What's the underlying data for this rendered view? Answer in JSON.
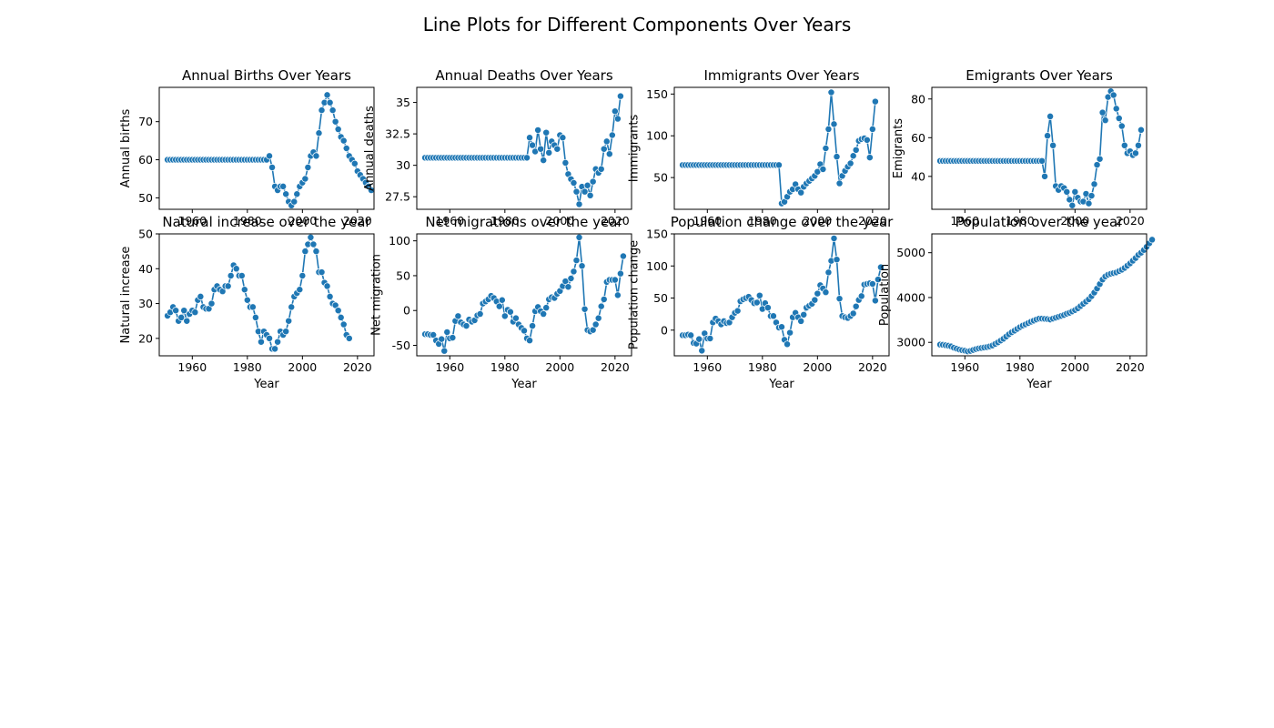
{
  "figure": {
    "suptitle": "Line Plots for Different Components Over Years",
    "line_color": "#1f77b4",
    "marker_edge_color": "#ffffff"
  },
  "chart_data": [
    {
      "type": "line",
      "title": "Annual Births Over Years",
      "xlabel": "",
      "ylabel": "Annual births",
      "xlim": [
        1948,
        2026
      ],
      "ylim": [
        47,
        79
      ],
      "xticks": [
        1960,
        1980,
        2000,
        2020
      ],
      "yticks": [
        50,
        60,
        70
      ],
      "x_start": 1951,
      "y": [
        60,
        60,
        60,
        60,
        60,
        60,
        60,
        60,
        60,
        60,
        60,
        60,
        60,
        60,
        60,
        60,
        60,
        60,
        60,
        60,
        60,
        60,
        60,
        60,
        60,
        60,
        60,
        60,
        60,
        60,
        60,
        60,
        60,
        60,
        60,
        60,
        60,
        61,
        58,
        53,
        52,
        53,
        53,
        51,
        49,
        48,
        49,
        51,
        53,
        54,
        55,
        58,
        61,
        62,
        61,
        67,
        73,
        75,
        77,
        75,
        73,
        70,
        68,
        66,
        65,
        63,
        61,
        60,
        59,
        57,
        56,
        55,
        54,
        53,
        52
      ]
    },
    {
      "type": "line",
      "title": "Annual Deaths Over Years",
      "xlabel": "",
      "ylabel": "Annual deaths",
      "xlim": [
        1948,
        2026
      ],
      "ylim": [
        26.5,
        36.2
      ],
      "xticks": [
        1960,
        1980,
        2000,
        2020
      ],
      "yticks": [
        27.5,
        30.0,
        32.5,
        35.0
      ],
      "x_start": 1951,
      "y": [
        30.6,
        30.6,
        30.6,
        30.6,
        30.6,
        30.6,
        30.6,
        30.6,
        30.6,
        30.6,
        30.6,
        30.6,
        30.6,
        30.6,
        30.6,
        30.6,
        30.6,
        30.6,
        30.6,
        30.6,
        30.6,
        30.6,
        30.6,
        30.6,
        30.6,
        30.6,
        30.6,
        30.6,
        30.6,
        30.6,
        30.6,
        30.6,
        30.6,
        30.6,
        30.6,
        30.6,
        30.6,
        30.6,
        32.2,
        31.6,
        31.1,
        32.8,
        31.3,
        30.4,
        32.6,
        31.0,
        31.9,
        31.6,
        31.3,
        32.4,
        32.2,
        30.2,
        29.3,
        28.9,
        28.6,
        27.9,
        26.9,
        28.3,
        27.9,
        28.4,
        27.6,
        28.7,
        29.7,
        29.4,
        29.7,
        31.3,
        31.9,
        30.9,
        32.4,
        34.3,
        33.7,
        35.5
      ]
    },
    {
      "type": "line",
      "title": "Immigrants Over Years",
      "xlabel": "",
      "ylabel": "Immigrants",
      "xlim": [
        1948,
        2026
      ],
      "ylim": [
        12,
        158
      ],
      "xticks": [
        1960,
        1980,
        2000,
        2020
      ],
      "yticks": [
        50,
        100,
        150
      ],
      "x_start": 1951,
      "y": [
        65,
        65,
        65,
        65,
        65,
        65,
        65,
        65,
        65,
        65,
        65,
        65,
        65,
        65,
        65,
        65,
        65,
        65,
        65,
        65,
        65,
        65,
        65,
        65,
        65,
        65,
        65,
        65,
        65,
        65,
        65,
        65,
        65,
        65,
        65,
        65,
        19,
        21,
        27,
        33,
        36,
        42,
        36,
        32,
        39,
        43,
        46,
        49,
        52,
        57,
        66,
        60,
        85,
        108,
        152,
        114,
        75,
        43,
        52,
        58,
        63,
        67,
        76,
        83,
        94,
        96,
        97,
        95,
        74,
        108,
        141
      ]
    },
    {
      "type": "line",
      "title": "Emigrants Over Years",
      "xlabel": "",
      "ylabel": "Emigrants",
      "xlim": [
        1948,
        2026
      ],
      "ylim": [
        23,
        86
      ],
      "xticks": [
        1960,
        1980,
        2000,
        2020
      ],
      "yticks": [
        40,
        60,
        80
      ],
      "x_start": 1951,
      "y": [
        48,
        48,
        48,
        48,
        48,
        48,
        48,
        48,
        48,
        48,
        48,
        48,
        48,
        48,
        48,
        48,
        48,
        48,
        48,
        48,
        48,
        48,
        48,
        48,
        48,
        48,
        48,
        48,
        48,
        48,
        48,
        48,
        48,
        48,
        48,
        48,
        48,
        48,
        40,
        61,
        71,
        56,
        35,
        33,
        35,
        34,
        32,
        28,
        25,
        32,
        29,
        27,
        27,
        31,
        26,
        30,
        36,
        46,
        49,
        73,
        69,
        81,
        84,
        82,
        75,
        70,
        66,
        56,
        52,
        53,
        51,
        52,
        56,
        64
      ]
    },
    {
      "type": "line",
      "title": "Natural increase over the year",
      "xlabel": "Year",
      "ylabel": "Natural increase",
      "xlim": [
        1948,
        2026
      ],
      "ylim": [
        15,
        50
      ],
      "xticks": [
        1960,
        1980,
        2000,
        2020
      ],
      "yticks": [
        20,
        30,
        40,
        50
      ],
      "x_start": 1951,
      "y": [
        26.5,
        27.5,
        29,
        28,
        25,
        26,
        28,
        25,
        27,
        28,
        27.5,
        31,
        32,
        29,
        28.5,
        28.5,
        30,
        34,
        35,
        34,
        33.5,
        35,
        35,
        38,
        41,
        40,
        38,
        38,
        34,
        31,
        29,
        29,
        26,
        22,
        19,
        22,
        21,
        20,
        17,
        17,
        19,
        22,
        21,
        22,
        25,
        29,
        32,
        33,
        34,
        38,
        45,
        47,
        49,
        47,
        45,
        39,
        39,
        36,
        35,
        32,
        30,
        29.5,
        28,
        26,
        24,
        21,
        20
      ]
    },
    {
      "type": "line",
      "title": "Net migrations over the year",
      "xlabel": "Year",
      "ylabel": "Net migration",
      "xlim": [
        1948,
        2026
      ],
      "ylim": [
        -65,
        110
      ],
      "xticks": [
        1960,
        1980,
        2000,
        2020
      ],
      "yticks": [
        -50,
        0,
        50,
        100
      ],
      "x_start": 1951,
      "y": [
        -34,
        -34,
        -35,
        -35,
        -43,
        -48,
        -41,
        -58,
        -31,
        -40,
        -39,
        -15,
        -8,
        -17,
        -20,
        -22,
        -13,
        -16,
        -14,
        -7,
        -5,
        10,
        13,
        16,
        21,
        18,
        13,
        6,
        15,
        -8,
        1,
        -2,
        -16,
        -11,
        -20,
        -25,
        -29,
        -40,
        -43,
        -22,
        -1,
        5,
        -1,
        -5,
        4,
        16,
        19,
        18,
        24,
        28,
        35,
        42,
        34,
        46,
        56,
        72,
        105,
        64,
        2,
        -28,
        -30,
        -28,
        -20,
        -11,
        6,
        16,
        41,
        44,
        44,
        44,
        22,
        53,
        78
      ]
    },
    {
      "type": "line",
      "title": "Population change over the year",
      "xlabel": "Year",
      "ylabel": "Population change",
      "xlim": [
        1948,
        2026
      ],
      "ylim": [
        -40,
        150
      ],
      "xticks": [
        1960,
        1980,
        2000,
        2020
      ],
      "yticks": [
        0,
        50,
        100,
        150
      ],
      "x_start": 1951,
      "y": [
        -8,
        -8,
        -7,
        -8,
        -20,
        -21,
        -14,
        -32,
        -5,
        -13,
        -13,
        12,
        18,
        14,
        9,
        14,
        11,
        12,
        20,
        27,
        30,
        45,
        48,
        50,
        52,
        47,
        42,
        43,
        54,
        33,
        42,
        35,
        22,
        22,
        12,
        4,
        5,
        -15,
        -22,
        -4,
        20,
        27,
        20,
        14,
        24,
        35,
        38,
        41,
        47,
        57,
        70,
        65,
        59,
        90,
        108,
        143,
        110,
        49,
        22,
        20,
        19,
        22,
        26,
        37,
        47,
        53,
        71,
        72,
        73,
        72,
        46,
        79,
        98
      ]
    },
    {
      "type": "line",
      "title": "Population over the year",
      "xlabel": "Year",
      "ylabel": "Population",
      "xlim": [
        1948,
        2026
      ],
      "ylim": [
        2700,
        5420
      ],
      "xticks": [
        1960,
        1980,
        2000,
        2020
      ],
      "yticks": [
        3000,
        4000,
        5000
      ],
      "x_start": 1951,
      "y": [
        2950,
        2945,
        2935,
        2925,
        2910,
        2880,
        2860,
        2840,
        2825,
        2815,
        2800,
        2810,
        2830,
        2850,
        2865,
        2875,
        2885,
        2895,
        2910,
        2930,
        2965,
        3000,
        3040,
        3080,
        3130,
        3180,
        3225,
        3260,
        3300,
        3340,
        3375,
        3400,
        3430,
        3460,
        3485,
        3510,
        3530,
        3530,
        3525,
        3520,
        3510,
        3530,
        3550,
        3570,
        3590,
        3610,
        3640,
        3660,
        3690,
        3720,
        3760,
        3810,
        3860,
        3910,
        3960,
        4030,
        4110,
        4200,
        4300,
        4400,
        4470,
        4510,
        4530,
        4545,
        4560,
        4590,
        4620,
        4660,
        4710,
        4760,
        4820,
        4880,
        4950,
        5000,
        5060,
        5130,
        5210,
        5290
      ]
    }
  ]
}
